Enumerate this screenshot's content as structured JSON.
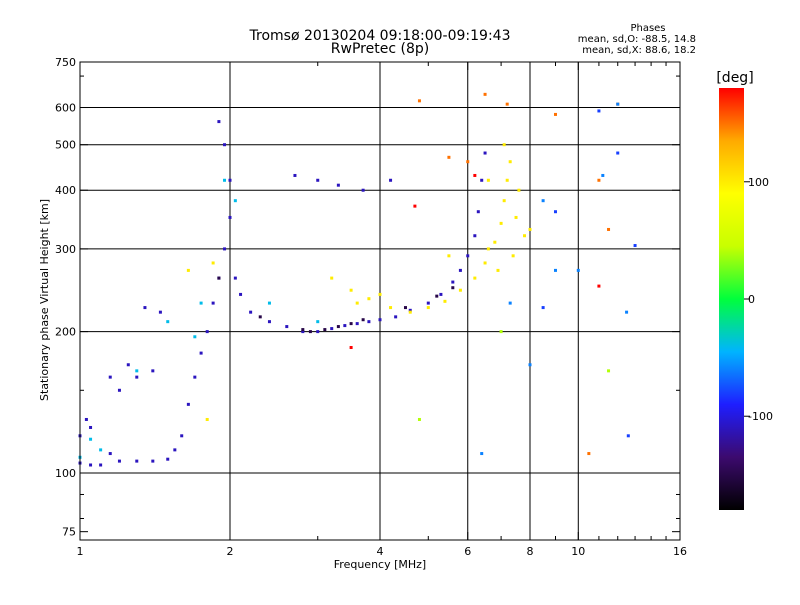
{
  "chart_data": {
    "type": "scatter",
    "title": "Tromsø 20130204 09:18:00-09:19:43",
    "subtitle": "RwPretec (8p)",
    "xlabel": "Frequency [MHz]",
    "ylabel": "Stationary phase Virtual Height [km]",
    "x_scale": "log",
    "y_scale": "log",
    "xlim": [
      1,
      16
    ],
    "ylim": [
      72,
      750
    ],
    "x_ticks": [
      1,
      2,
      4,
      6,
      8,
      10,
      16
    ],
    "x_minor_ticks": [
      3,
      5,
      7,
      9,
      11,
      12,
      13,
      14,
      15
    ],
    "y_ticks": [
      75,
      100,
      200,
      300,
      400,
      500,
      600,
      750
    ],
    "y_minor_ticks": [
      80,
      90,
      150,
      700
    ],
    "x_grid": [
      2,
      4,
      6,
      8,
      10
    ],
    "y_grid": [
      100,
      200,
      300,
      400,
      500,
      600
    ],
    "grid": true,
    "legend_title": "Phases",
    "legend_lines": [
      "mean, sd,O: -88.5, 14.8",
      "mean, sd,X:  88.6, 18.2"
    ],
    "colorbar": {
      "label": "[deg]",
      "range": [
        -180,
        180
      ],
      "ticks": [
        100,
        0,
        -100
      ],
      "colors": [
        "#000000",
        "#3c0a6e",
        "#1e1eff",
        "#00b4ff",
        "#00ff3c",
        "#c8ff00",
        "#ffff00",
        "#ffaa00",
        "#ff0000"
      ]
    },
    "series": [
      {
        "phase_deg": -110,
        "points": [
          [
            1.0,
            105
          ],
          [
            1.05,
            104
          ],
          [
            1.1,
            104
          ],
          [
            1.0,
            120
          ],
          [
            1.03,
            130
          ],
          [
            1.05,
            125
          ],
          [
            1.15,
            110
          ],
          [
            1.2,
            106
          ],
          [
            1.3,
            106
          ],
          [
            1.4,
            106
          ],
          [
            1.5,
            107
          ],
          [
            1.55,
            112
          ],
          [
            1.6,
            120
          ],
          [
            1.65,
            140
          ],
          [
            1.7,
            160
          ],
          [
            1.75,
            180
          ],
          [
            1.8,
            200
          ],
          [
            1.85,
            230
          ],
          [
            1.9,
            260
          ],
          [
            1.95,
            300
          ],
          [
            2.0,
            350
          ],
          [
            2.0,
            420
          ],
          [
            1.95,
            500
          ],
          [
            1.9,
            560
          ],
          [
            2.05,
            260
          ],
          [
            2.1,
            240
          ],
          [
            2.2,
            220
          ],
          [
            2.4,
            210
          ],
          [
            2.6,
            205
          ],
          [
            2.8,
            200
          ],
          [
            3.0,
            200
          ],
          [
            3.2,
            203
          ],
          [
            3.4,
            206
          ],
          [
            3.6,
            208
          ],
          [
            3.8,
            210
          ],
          [
            4.0,
            212
          ],
          [
            4.3,
            215
          ],
          [
            4.6,
            222
          ],
          [
            5.0,
            230
          ],
          [
            5.3,
            240
          ],
          [
            5.6,
            255
          ],
          [
            5.8,
            270
          ],
          [
            6.0,
            290
          ],
          [
            6.2,
            320
          ],
          [
            6.3,
            360
          ],
          [
            6.4,
            420
          ],
          [
            6.5,
            480
          ],
          [
            1.25,
            170
          ],
          [
            1.3,
            160
          ],
          [
            1.4,
            165
          ],
          [
            1.45,
            220
          ],
          [
            1.35,
            225
          ],
          [
            2.7,
            430
          ],
          [
            3.0,
            420
          ],
          [
            3.3,
            410
          ],
          [
            3.7,
            400
          ],
          [
            4.2,
            420
          ],
          [
            1.15,
            160
          ],
          [
            1.2,
            150
          ]
        ]
      },
      {
        "phase_deg": -150,
        "points": [
          [
            2.9,
            200
          ],
          [
            3.1,
            202
          ],
          [
            3.3,
            205
          ],
          [
            3.5,
            208
          ],
          [
            3.7,
            212
          ],
          [
            4.5,
            225
          ],
          [
            5.2,
            238
          ],
          [
            5.6,
            248
          ],
          [
            1.9,
            260
          ],
          [
            2.3,
            215
          ],
          [
            2.8,
            202
          ]
        ]
      },
      {
        "phase_deg": -40,
        "points": [
          [
            1.0,
            108
          ],
          [
            1.05,
            118
          ],
          [
            1.1,
            112
          ],
          [
            1.3,
            165
          ],
          [
            1.5,
            210
          ],
          [
            1.7,
            195
          ],
          [
            1.75,
            230
          ],
          [
            1.95,
            420
          ],
          [
            2.05,
            380
          ],
          [
            2.4,
            230
          ],
          [
            3.0,
            210
          ]
        ]
      },
      {
        "phase_deg": 100,
        "points": [
          [
            3.2,
            260
          ],
          [
            3.5,
            245
          ],
          [
            3.8,
            235
          ],
          [
            4.2,
            225
          ],
          [
            4.6,
            220
          ],
          [
            5.0,
            225
          ],
          [
            5.4,
            232
          ],
          [
            5.8,
            245
          ],
          [
            6.2,
            260
          ],
          [
            6.5,
            280
          ],
          [
            6.8,
            310
          ],
          [
            7.0,
            340
          ],
          [
            7.1,
            380
          ],
          [
            7.2,
            420
          ],
          [
            7.3,
            460
          ],
          [
            7.1,
            500
          ],
          [
            7.5,
            350
          ],
          [
            7.8,
            320
          ],
          [
            8.0,
            330
          ],
          [
            7.6,
            400
          ],
          [
            6.6,
            300
          ],
          [
            6.9,
            270
          ],
          [
            7.4,
            290
          ],
          [
            4.0,
            240
          ],
          [
            3.6,
            230
          ],
          [
            1.85,
            280
          ],
          [
            1.65,
            270
          ],
          [
            1.8,
            130
          ],
          [
            5.5,
            290
          ],
          [
            6.6,
            420
          ]
        ]
      },
      {
        "phase_deg": 150,
        "points": [
          [
            5.5,
            470
          ],
          [
            6.0,
            460
          ],
          [
            6.5,
            640
          ],
          [
            7.2,
            610
          ],
          [
            11.0,
            420
          ],
          [
            11.5,
            330
          ],
          [
            12.0,
            610
          ],
          [
            9.0,
            580
          ],
          [
            10.5,
            110
          ],
          [
            4.8,
            620
          ]
        ]
      },
      {
        "phase_deg": 180,
        "points": [
          [
            4.7,
            370
          ],
          [
            11.0,
            250
          ],
          [
            3.5,
            185
          ],
          [
            6.2,
            430
          ]
        ]
      },
      {
        "phase_deg": -60,
        "points": [
          [
            8.5,
            380
          ],
          [
            9.0,
            270
          ],
          [
            10.0,
            270
          ],
          [
            12.5,
            220
          ],
          [
            11.2,
            430
          ],
          [
            12.0,
            610
          ],
          [
            7.3,
            230
          ],
          [
            8.0,
            170
          ],
          [
            6.4,
            110
          ]
        ]
      },
      {
        "phase_deg": -80,
        "points": [
          [
            8.5,
            225
          ],
          [
            11.0,
            590
          ],
          [
            12.0,
            480
          ],
          [
            13.0,
            305
          ],
          [
            9.0,
            360
          ],
          [
            12.6,
            120
          ]
        ]
      },
      {
        "phase_deg": 40,
        "points": [
          [
            4.8,
            130
          ],
          [
            7.0,
            200
          ],
          [
            11.5,
            165
          ]
        ]
      }
    ]
  }
}
